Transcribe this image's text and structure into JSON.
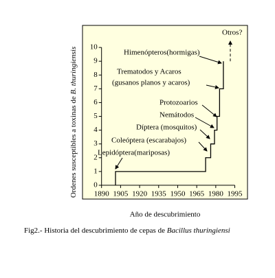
{
  "chart_data": {
    "type": "step",
    "ylabel": [
      "Ordenes susceptibles a toxinas de ",
      "B. thuringiensis"
    ],
    "xlabel": "Año de descubrimiento",
    "caption": [
      "Fig2.- Historia del descubrimiento de cepas de ",
      "Bacillus thuringiensi"
    ],
    "x": [
      1901,
      1901,
      1972,
      1976,
      1979,
      1981,
      1983,
      1986
    ],
    "values": [
      0,
      1,
      2,
      3,
      4,
      5,
      7,
      9
    ],
    "color": "#000000",
    "background": "#ffffe0",
    "xlim": [
      1875,
      2005
    ],
    "ylim": [
      -1,
      11.6
    ],
    "xticks": [
      1890,
      1905,
      1920,
      1935,
      1950,
      1965,
      1980,
      1995
    ],
    "yticks": [
      0,
      1,
      2,
      3,
      4,
      5,
      6,
      7,
      8,
      9,
      10
    ],
    "annotations": [
      "Himenópteros(hormigas)",
      "Trematodos y Acaros",
      "(gusanos planos y  acaros)",
      "Protozoarios",
      "Nemátodos",
      "Díptera (mosquitos)",
      "Coleóptera (escarabajos)",
      "Lepidóptera(mariposas)",
      "Otros?"
    ]
  }
}
